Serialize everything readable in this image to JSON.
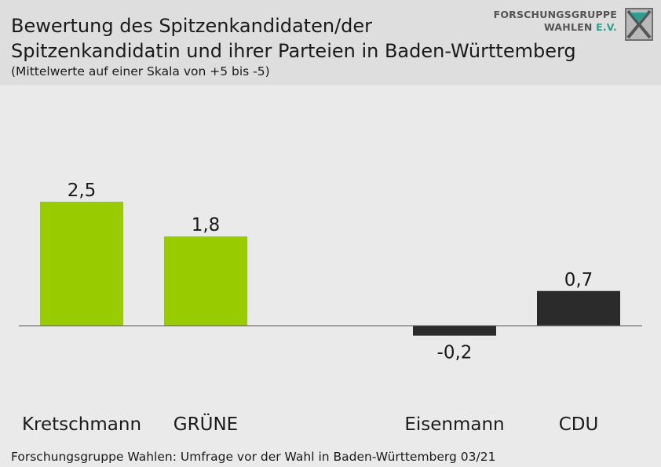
{
  "header": {
    "title_line1": "Bewertung des Spitzenkandidaten/der",
    "title_line2": "Spitzenkandidatin und ihrer Parteien in Baden-Württemberg",
    "subtitle": "(Mittelwerte auf einer Skala von +5 bis -5)"
  },
  "logo": {
    "line1": "FORSCHUNGSGRUPPE",
    "line2_main": "WAHLEN",
    "line2_accent": "E.V.",
    "icon": "fgw-x-logo-icon"
  },
  "source": "Forschungsgruppe Wahlen: Umfrage vor der Wahl in Baden-Württemberg 03/21",
  "colors": {
    "header_bg": "#dedede",
    "plot_bg": "#eaeaea",
    "green": "#99cc00",
    "dark": "#2b2b2b"
  },
  "chart_data": {
    "type": "bar",
    "categories": [
      "Kretschmann",
      "GRÜNE",
      "Eisenmann",
      "CDU"
    ],
    "values": [
      2.5,
      1.8,
      -0.2,
      0.7
    ],
    "value_labels": [
      "2,5",
      "1,8",
      "-0,2",
      "0,7"
    ],
    "colors": [
      "#99cc00",
      "#99cc00",
      "#2b2b2b",
      "#2b2b2b"
    ],
    "title": "Bewertung des Spitzenkandidaten/der Spitzenkandidatin und ihrer Parteien in Baden-Württemberg",
    "subtitle": "(Mittelwerte auf einer Skala von +5 bis -5)",
    "grid": false,
    "legend": "none"
  }
}
